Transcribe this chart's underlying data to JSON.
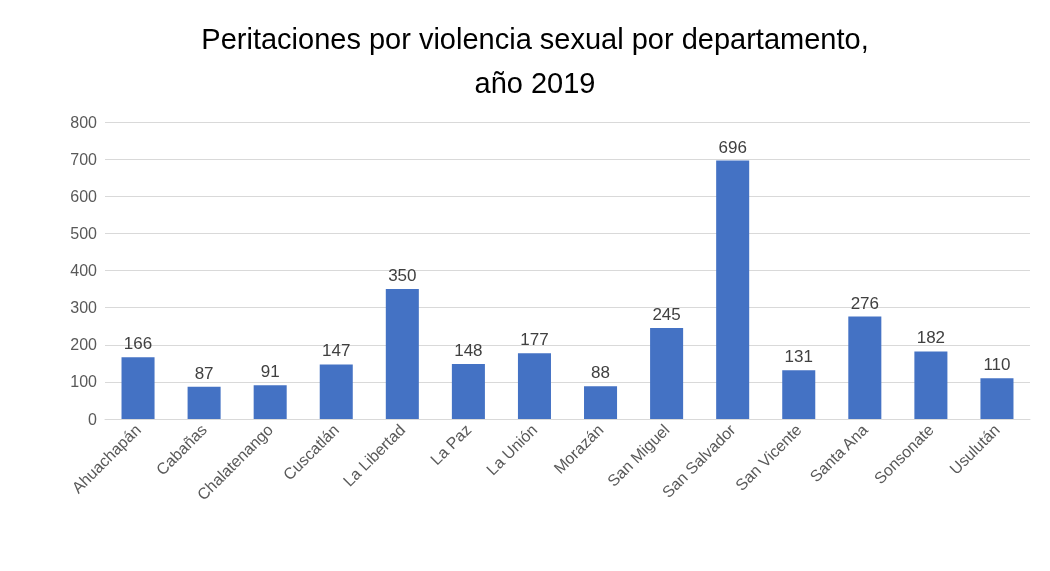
{
  "chart_data": {
    "type": "bar",
    "title": "Peritaciones por violencia sexual por departamento,\naño 2019",
    "categories": [
      "Ahuachapán",
      "Cabañas",
      "Chalatenango",
      "Cuscatlán",
      "La Libertad",
      "La Paz",
      "La Unión",
      "Morazán",
      "San Miguel",
      "San Salvador",
      "San Vicente",
      "Santa Ana",
      "Sonsonate",
      "Usulután"
    ],
    "values": [
      166,
      87,
      91,
      147,
      350,
      148,
      177,
      88,
      245,
      696,
      131,
      276,
      182,
      110
    ],
    "color": "#4472c4",
    "ylim": [
      0,
      800
    ],
    "yticks": [
      0,
      100,
      200,
      300,
      400,
      500,
      600,
      700,
      800
    ],
    "grid": "y",
    "data_labels": true
  }
}
